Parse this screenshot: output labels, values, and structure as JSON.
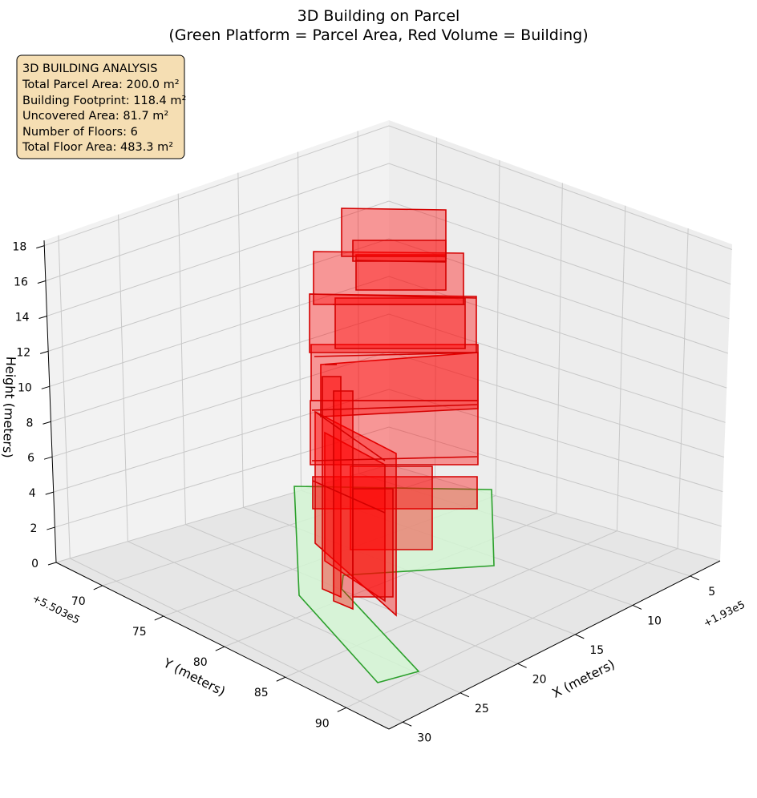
{
  "chart_data": {
    "type": "3d-polygons",
    "title": "3D Building on Parcel",
    "subtitle": "(Green Platform = Parcel Area, Red Volume = Building)",
    "xlabel": "X (meters)",
    "ylabel": "Y (meters)",
    "zlabel": "Height (meters)",
    "x_offset_label": "+1.93e5",
    "y_offset_label": "+5.503e5",
    "x_ticks": [
      "5",
      "10",
      "15",
      "20",
      "25",
      "30"
    ],
    "y_ticks": [
      "70",
      "75",
      "80",
      "85",
      "90"
    ],
    "z_ticks": [
      "0",
      "2",
      "4",
      "6",
      "8",
      "10",
      "12",
      "14",
      "16",
      "18"
    ],
    "grid": true,
    "info_box": {
      "lines": [
        "3D BUILDING ANALYSIS",
        "Total Parcel Area: 200.0 m²",
        "Building Footprint: 118.4 m²",
        "Uncovered Area: 81.7 m²",
        "Number of Floors: 6",
        "Total Floor Area: 483.3 m²"
      ],
      "placement": "top-left"
    },
    "colors": {
      "parcel_fill": "#d4f4d4",
      "parcel_edge": "#2ca02c",
      "building_fill": "#ff0000",
      "building_edge": "#d40000",
      "info_box_fill": "#f5deb3"
    }
  }
}
